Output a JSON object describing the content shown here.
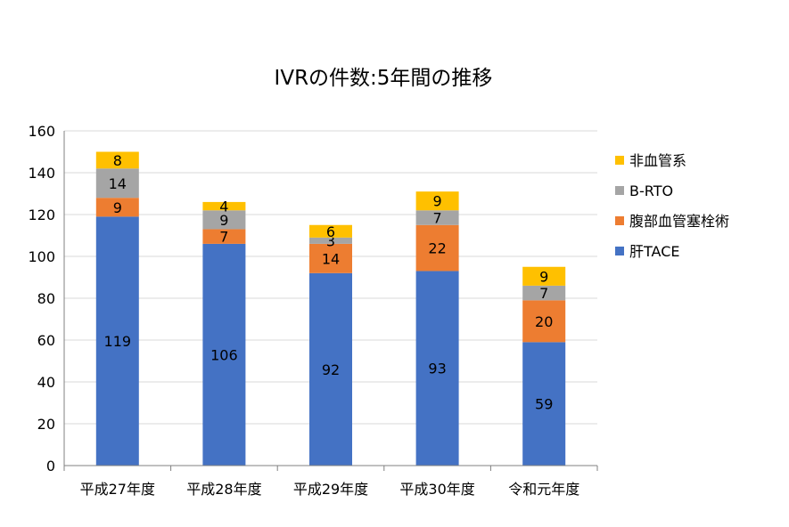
{
  "chart_data": {
    "type": "bar",
    "stacked": true,
    "title": "IVRの件数:5年間の推移",
    "xlabel": "",
    "ylabel": "",
    "categories": [
      "平成27年度",
      "平成28年度",
      "平成29年度",
      "平成30年度",
      "令和元年度"
    ],
    "ylim": [
      0,
      160
    ],
    "yticks": [
      0,
      20,
      40,
      60,
      80,
      100,
      120,
      140,
      160
    ],
    "grid": true,
    "legend_position": "right",
    "series": [
      {
        "name": "肝TACE",
        "color": "#4472C4",
        "values": [
          119,
          106,
          92,
          93,
          59
        ]
      },
      {
        "name": "腹部血管塞栓術",
        "color": "#ED7D31",
        "values": [
          9,
          7,
          14,
          22,
          20
        ]
      },
      {
        "name": "B-RTO",
        "color": "#A5A5A5",
        "values": [
          14,
          9,
          3,
          7,
          7
        ]
      },
      {
        "name": "非血管系",
        "color": "#FFC000",
        "values": [
          8,
          4,
          6,
          9,
          9
        ]
      }
    ]
  }
}
